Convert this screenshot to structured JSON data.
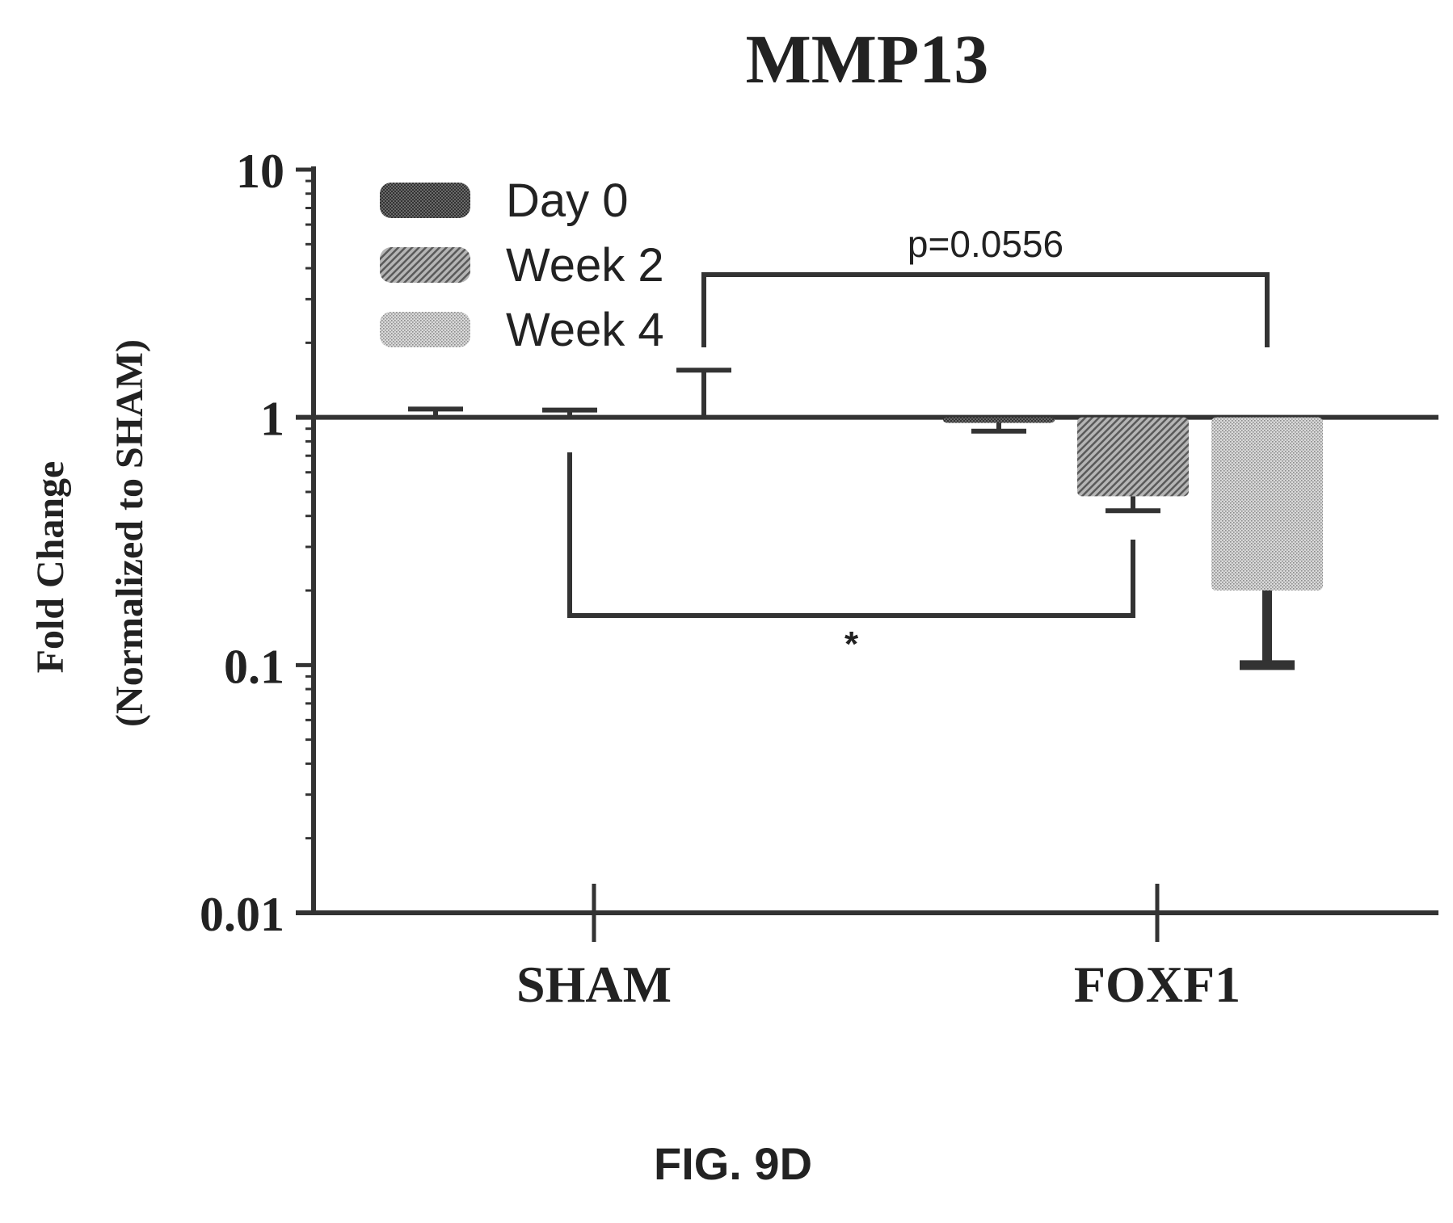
{
  "colors": {
    "axis": "#333333",
    "text": "#222222",
    "day0_fill": "#555555",
    "week2_fill": "#8a8a8a",
    "week4_fill": "#bdbdbd",
    "legend_text": "#9a9a9a"
  },
  "chart_data": {
    "type": "bar",
    "title": "MMP13",
    "ylabel_line1": "Fold Change",
    "ylabel_line2": "(Normalized to SHAM)",
    "xlabel": "",
    "yscale": "log",
    "ylim": [
      0.01,
      10
    ],
    "yticks": [
      {
        "value": 10,
        "label": "10"
      },
      {
        "value": 1,
        "label": "1"
      },
      {
        "value": 0.1,
        "label": "0.1"
      },
      {
        "value": 0.01,
        "label": "0.01"
      }
    ],
    "baseline": 1,
    "categories": [
      "SHAM",
      "FOXF1"
    ],
    "series": [
      {
        "name": "Day 0",
        "pattern": "dense",
        "values": [
          1.0,
          0.95
        ],
        "error": [
          1.08,
          0.88
        ]
      },
      {
        "name": "Week 2",
        "pattern": "diagonal",
        "values": [
          1.0,
          0.48
        ],
        "error": [
          1.07,
          0.42
        ]
      },
      {
        "name": "Week 4",
        "pattern": "dotted",
        "values": [
          1.0,
          0.2
        ],
        "error": [
          1.55,
          0.1
        ]
      }
    ],
    "legend_position": "top-left",
    "annotations": [
      {
        "text": "p=0.0556",
        "from": {
          "category": 0,
          "series": 2
        },
        "to": {
          "category": 1,
          "series": 2
        },
        "side": "above"
      },
      {
        "text": "*",
        "from": {
          "category": 0,
          "series": 1
        },
        "to": {
          "category": 1,
          "series": 1
        },
        "side": "below"
      }
    ]
  },
  "figure_caption": "FIG. 9D"
}
